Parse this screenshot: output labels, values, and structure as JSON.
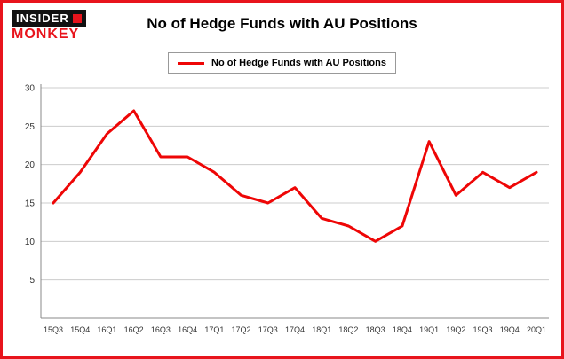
{
  "header": {
    "brand_top": "INSIDER",
    "brand_bottom": "MONKEY",
    "title": "No of Hedge Funds with AU Positions"
  },
  "legend": {
    "label": "No of Hedge Funds with AU Positions",
    "color": "#ee0606"
  },
  "chart_data": {
    "type": "line",
    "title": "No of Hedge Funds with AU Positions",
    "categories": [
      "15Q3",
      "15Q4",
      "16Q1",
      "16Q2",
      "16Q3",
      "16Q4",
      "17Q1",
      "17Q2",
      "17Q3",
      "17Q4",
      "18Q1",
      "18Q2",
      "18Q3",
      "18Q4",
      "19Q1",
      "19Q2",
      "19Q3",
      "19Q4",
      "20Q1"
    ],
    "values": [
      15,
      19,
      24,
      27,
      21,
      21,
      19,
      16,
      15,
      17,
      13,
      12,
      10,
      12,
      23,
      16,
      19,
      17,
      19
    ],
    "xlabel": "",
    "ylabel": "",
    "ylim": [
      0,
      30
    ],
    "yticks": [
      5,
      10,
      15,
      20,
      25,
      30
    ],
    "grid": true,
    "legend_position": "top",
    "line_color": "#ee0606",
    "grid_color": "#cccccc",
    "axis_color": "#888888",
    "tick_label_color": "#333333"
  }
}
